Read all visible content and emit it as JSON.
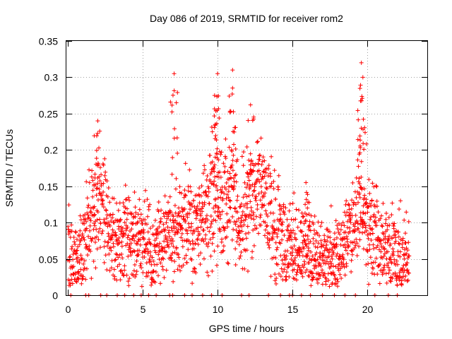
{
  "chart_data": {
    "type": "scatter",
    "title": "Day 086 of 2019, SRMTID for receiver rom2",
    "xlabel": "GPS time / hours",
    "ylabel": "SRMTID / TECUs",
    "xlim": [
      0,
      24
    ],
    "ylim": [
      0,
      0.35
    ],
    "xticks": [
      0,
      5,
      10,
      15,
      20
    ],
    "yticks": [
      0,
      0.05,
      0.1,
      0.15,
      0.2,
      0.25,
      0.3,
      0.35
    ],
    "xtick_labels": [
      "0",
      "5",
      "10",
      "15",
      "20"
    ],
    "ytick_labels": [
      "0",
      "0.05",
      "0.1",
      "0.15",
      "0.2",
      "0.25",
      "0.3",
      "0.35"
    ],
    "grid": true,
    "marker": "+",
    "series": [
      {
        "name": "SRMTID",
        "color": "#ff0000",
        "profile_hours": [
          0.0,
          0.5,
          1.0,
          1.5,
          2.0,
          2.5,
          3.0,
          3.5,
          4.0,
          4.5,
          5.0,
          5.5,
          6.0,
          6.5,
          7.0,
          7.5,
          8.0,
          8.5,
          9.0,
          9.5,
          10.0,
          10.5,
          11.0,
          11.5,
          12.0,
          12.5,
          13.0,
          13.5,
          14.0,
          14.5,
          15.0,
          15.5,
          16.0,
          16.5,
          17.0,
          17.5,
          18.0,
          18.5,
          19.0,
          19.5,
          20.0,
          20.5,
          21.0,
          21.5,
          22.0,
          22.5,
          22.8
        ],
        "profile_mean": [
          0.06,
          0.05,
          0.06,
          0.09,
          0.14,
          0.12,
          0.07,
          0.07,
          0.08,
          0.08,
          0.08,
          0.06,
          0.07,
          0.08,
          0.09,
          0.1,
          0.1,
          0.09,
          0.11,
          0.13,
          0.14,
          0.13,
          0.14,
          0.1,
          0.12,
          0.14,
          0.14,
          0.12,
          0.09,
          0.08,
          0.06,
          0.06,
          0.07,
          0.05,
          0.05,
          0.05,
          0.05,
          0.07,
          0.1,
          0.12,
          0.1,
          0.08,
          0.06,
          0.06,
          0.06,
          0.05,
          0.05
        ],
        "spread": 0.035,
        "peaks": [
          {
            "x": 2.0,
            "y": 0.24
          },
          {
            "x": 7.1,
            "y": 0.305
          },
          {
            "x": 9.8,
            "y": 0.275
          },
          {
            "x": 10.0,
            "y": 0.305
          },
          {
            "x": 11.0,
            "y": 0.31
          },
          {
            "x": 12.2,
            "y": 0.262
          },
          {
            "x": 15.9,
            "y": 0.155
          },
          {
            "x": 19.6,
            "y": 0.32
          },
          {
            "x": 19.7,
            "y": 0.3
          }
        ],
        "zeros_hours": [
          0.2,
          1.2,
          1.4,
          2.2,
          2.6,
          3.3,
          3.8,
          4.4,
          4.9,
          5.4,
          5.9,
          6.8,
          7.0,
          7.8,
          8.3,
          9.0,
          9.6,
          10.3,
          11.6,
          12.1,
          13.4,
          14.2,
          14.8,
          15.0,
          15.6,
          16.2,
          17.0,
          17.8,
          18.5,
          19.2,
          20.5,
          21.4,
          22.0
        ]
      }
    ]
  }
}
